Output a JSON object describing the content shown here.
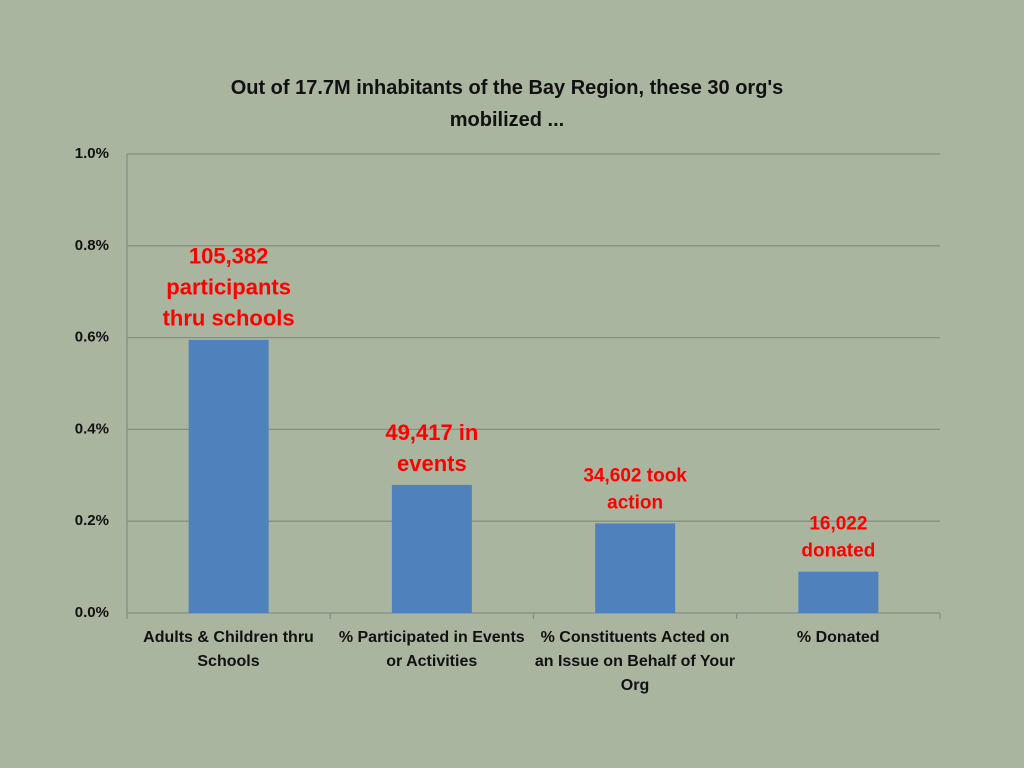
{
  "chart_data": {
    "type": "bar",
    "title": "Out of 17.7M inhabitants of the Bay Region, these 30 org's mobilized ...",
    "categories": [
      "Adults & Children thru Schools",
      "% Participated in Events or Activities",
      "% Constituents Acted on an Issue on Behalf of Your Org",
      "% Donated"
    ],
    "values": [
      0.595,
      0.279,
      0.195,
      0.09
    ],
    "color": "#4f81bd",
    "ylim": [
      0,
      1
    ],
    "yticks": [
      {
        "value": 0,
        "label": "0.0%"
      },
      {
        "value": 0.2,
        "label": "0.2%"
      },
      {
        "value": 0.4,
        "label": "0.4%"
      },
      {
        "value": 0.6,
        "label": "0.6%"
      },
      {
        "value": 0.8,
        "label": "0.8%"
      },
      {
        "value": 1,
        "label": "1.0%"
      }
    ],
    "grid": true,
    "annotations": [
      [
        "105,382",
        "participants",
        "thru schools"
      ],
      [
        "49,417 in",
        "events"
      ],
      [
        "34,602 took",
        "action"
      ],
      [
        "16,022",
        "donated"
      ]
    ],
    "annotation_color": "#ff0000"
  }
}
